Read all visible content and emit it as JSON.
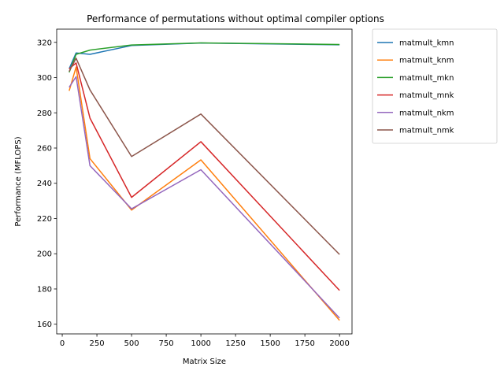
{
  "chart_data": {
    "type": "line",
    "title": "Performance of permutations without optimal compiler options",
    "xlabel": "Matrix Size",
    "ylabel": "Performance (MFLOPS)",
    "xlim": [
      -40,
      2090
    ],
    "ylim": [
      154.5,
      327.5
    ],
    "xticks": [
      0,
      250,
      500,
      750,
      1000,
      1250,
      1500,
      1750,
      2000
    ],
    "yticks": [
      160,
      180,
      200,
      220,
      240,
      260,
      280,
      300,
      320
    ],
    "grid": false,
    "legend_position": "outside-top-right",
    "x": [
      50,
      100,
      200,
      500,
      1000,
      2000
    ],
    "series": [
      {
        "name": "matmult_kmn",
        "color": "#1f77b4",
        "values": [
          305,
          314,
          313.2,
          318.2,
          319.6,
          318.6
        ]
      },
      {
        "name": "matmult_knm",
        "color": "#ff7f0e",
        "values": [
          292.5,
          306,
          254,
          224.8,
          253.3,
          162.2
        ]
      },
      {
        "name": "matmult_mkn",
        "color": "#2ca02c",
        "values": [
          303,
          313.2,
          315.6,
          318.5,
          319.7,
          318.8
        ]
      },
      {
        "name": "matmult_mnk",
        "color": "#d62728",
        "values": [
          305,
          308.3,
          277,
          232,
          263.6,
          179.2
        ]
      },
      {
        "name": "matmult_nkm",
        "color": "#9467bd",
        "values": [
          294.5,
          300.5,
          250,
          225.5,
          247.7,
          163.5
        ]
      },
      {
        "name": "matmult_nmk",
        "color": "#8c564b",
        "values": [
          303.5,
          311,
          293,
          255.2,
          279.3,
          199.6
        ]
      }
    ]
  }
}
